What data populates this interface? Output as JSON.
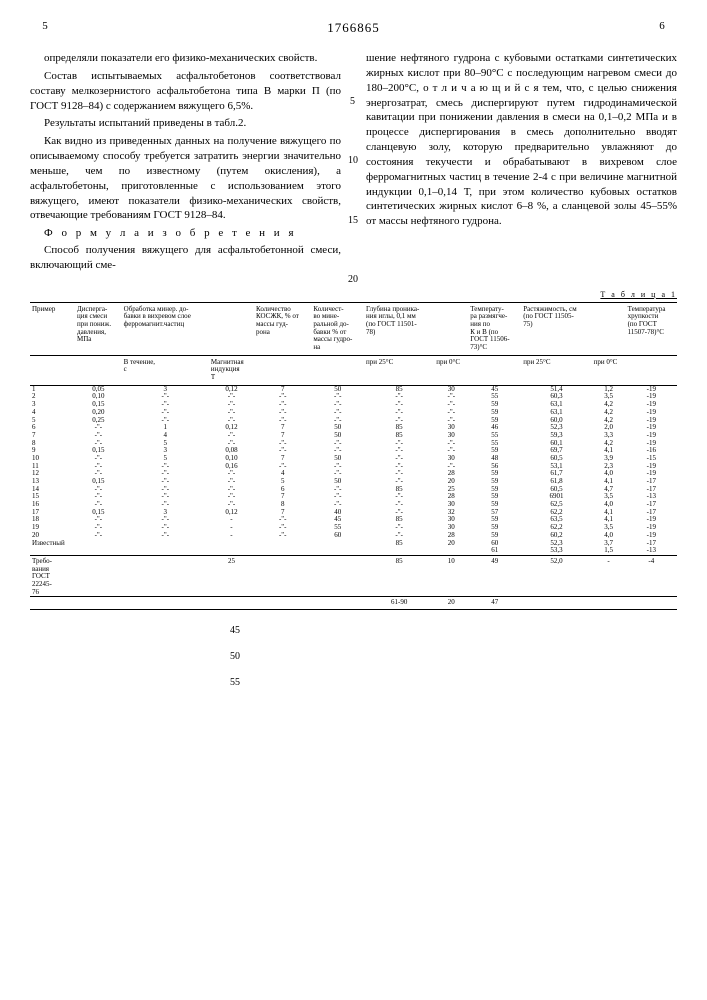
{
  "header": {
    "page_left": "5",
    "patent_number": "1766865",
    "page_right": "6"
  },
  "left_col": {
    "p1": "определяли показатели его физико-механических свойств.",
    "p2": "Состав испытываемых асфальтобетонов соответствовал составу мелкозернистого асфальтобетона типа В марки П (по ГОСТ 9128–84) с содержанием вяжущего 6,5%.",
    "p3": "Результаты испытаний приведены в табл.2.",
    "p4": "Как видно из приведенных данных на получение вяжущего по описываемому способу требуется затратить энергии значительно меньше, чем по известному (путем окисления), а асфальтобетоны, приготовленные с использованием этого вяжущего, имеют показатели физико-механических свойств, отвечающие требованиям ГОСТ 9128–84.",
    "formula_label": "Ф о р м у л а  и з о б р е т е н и я",
    "p5": "Способ получения вяжущего для асфальтобетонной смеси, включающий сме-",
    "ln5": "5",
    "ln10": "10",
    "ln15": "15",
    "ln20": "20"
  },
  "right_col": {
    "p1": "шение нефтяного гудрона с кубовыми остатками синтетических жирных кислот при 80–90°С с последующим нагревом смеси до 180–200°С, о т л и ч а ю щ и й с я  тем, что, с целью снижения энергозатрат, смесь диспергируют путем гидродинамической кавитации при понижении давления в смеси на 0,1–0,2 МПа и в процессе диспергирования в смесь дополнительно вводят сланцевую золу, которую предварительно увлажняют до состояния текучести и обрабатывают в вихревом слое ферромагнитных частиц в течение 2-4 с при величине магнитной индукции 0,1–0,14 Т, при этом количество кубовых остатков синтетических жирных кислот 6–8 %, а сланцевой золы 45–55% от массы нефтяного гудрона."
  },
  "table": {
    "caption": "Т а б л и ц а 1",
    "headers": [
      "Пример",
      "Дисперга-\nция смеси\nпри пониж.\nдавления,\nМПа",
      "Обработка минер. до-\nбавки в вихревом слое\nферромагнит.частиц",
      "",
      "Количество\nКОСЖК, % от\nмассы гуд-\nрона",
      "Количест-\nво мине-\nральной до-\nбавки % от\nмассы гудро-\nна",
      "Глубина проника-\nния иглы, 0,1 мм\n(по ГОСТ 11501-\n78)",
      "",
      "Температу-\nра размягче-\nния по\nК и В (по\nГОСТ 11506-\n73)°С",
      "Растяжимость, см\n(по ГОСТ 11505-\n75)",
      "",
      "Температура\nхрупкости\n(по ГОСТ\n11507-78)°С"
    ],
    "subheaders": [
      "",
      "",
      "В течение,\nс",
      "Магнитная\nиндукция\nТ",
      "",
      "",
      "при 25°С",
      "при 0°С",
      "",
      "при 25°С",
      "при 0°С",
      ""
    ],
    "rows": [
      [
        "1",
        "0,05",
        "3",
        "0,12",
        "7",
        "50",
        "85",
        "30",
        "45",
        "51,4",
        "1,2",
        "-19"
      ],
      [
        "2",
        "0,10",
        "-\"-",
        "-\"-",
        "-\"-",
        "-\"-",
        "-\"-",
        "-\"-",
        "55",
        "60,3",
        "3,5",
        "-19"
      ],
      [
        "3",
        "0,15",
        "-\"-",
        "-\"-",
        "-\"-",
        "-\"-",
        "-\"-",
        "-\"-",
        "59",
        "63,1",
        "4,2",
        "-19"
      ],
      [
        "4",
        "0,20",
        "-\"-",
        "-\"-",
        "-\"-",
        "-\"-",
        "-\"-",
        "-\"-",
        "59",
        "63,1",
        "4,2",
        "-19"
      ],
      [
        "5",
        "0,25",
        "-\"-",
        "-\"-",
        "-\"-",
        "-\"-",
        "-\"-",
        "-\"-",
        "59",
        "60,0",
        "4,2",
        "-19"
      ],
      [
        "6",
        "-\"-",
        "1",
        "0,12",
        "7",
        "50",
        "85",
        "30",
        "46",
        "52,3",
        "2,0",
        "-19"
      ],
      [
        "7",
        "-\"-",
        "4",
        "-\"-",
        "7",
        "50",
        "85",
        "30",
        "55",
        "59,3",
        "3,3",
        "-19"
      ],
      [
        "8",
        "-\"-",
        "5",
        "-\"-",
        "-\"-",
        "-\"-",
        "-\"-",
        "-\"-",
        "55",
        "60,1",
        "4,2",
        "-19"
      ],
      [
        "9",
        "0,15",
        "3",
        "0,08",
        "-\"-",
        "-\"-",
        "-\"-",
        "-\"-",
        "59",
        "69,7",
        "4,1",
        "-16"
      ],
      [
        "10",
        "-\"-",
        "5",
        "0,10",
        "7",
        "50",
        "-\"-",
        "30",
        "48",
        "60,5",
        "3,9",
        "-15"
      ],
      [
        "11",
        "-\"-",
        "-\"-",
        "0,16",
        "-\"-",
        "-\"-",
        "-\"-",
        "-\"-",
        "56",
        "53,1",
        "2,3",
        "-19"
      ],
      [
        "12",
        "-\"-",
        "-\"-",
        "-\"-",
        "4",
        "-\"-",
        "-\"-",
        "28",
        "59",
        "61,7",
        "4,0",
        "-19"
      ],
      [
        "13",
        "0,15",
        "-\"-",
        "-\"-",
        "5",
        "50",
        "-\"-",
        "20",
        "59",
        "61,8",
        "4,1",
        "-17"
      ],
      [
        "14",
        "-\"-",
        "-\"-",
        "-\"-",
        "6",
        "-\"-",
        "85",
        "25",
        "59",
        "60,5",
        "4,7",
        "-17"
      ],
      [
        "15",
        "-\"-",
        "-\"-",
        "-\"-",
        "7",
        "-\"-",
        "-\"-",
        "28",
        "59",
        "6901",
        "3,5",
        "-13"
      ],
      [
        "16",
        "-\"-",
        "-\"-",
        "-\"-",
        "8",
        "-\"-",
        "-\"-",
        "30",
        "59",
        "62,5",
        "4,0",
        "-17"
      ],
      [
        "17",
        "0,15",
        "3",
        "0,12",
        "7",
        "40",
        "-\"-",
        "32",
        "57",
        "62,2",
        "4,1",
        "-17"
      ],
      [
        "18",
        "-\"-",
        "-\"-",
        "-",
        "-\"-",
        "45",
        "85",
        "30",
        "59",
        "63,5",
        "4,1",
        "-19"
      ],
      [
        "19",
        "-\"-",
        "-\"-",
        "-",
        "-\"-",
        "55",
        "-\"-",
        "30",
        "59",
        "62,2",
        "3,5",
        "-19"
      ],
      [
        "20",
        "-\"-",
        "-\"-",
        "-",
        "-\"-",
        "60",
        "-\"-",
        "28",
        "59",
        "60,2",
        "4,0",
        "-19"
      ],
      [
        "Известный",
        "",
        "",
        "",
        "",
        "",
        "85",
        "20",
        "60",
        "52,3",
        "3,7",
        "-17"
      ],
      [
        "",
        "",
        "",
        "",
        "",
        "",
        "",
        "",
        "61",
        "53,3",
        "1,5",
        "-13"
      ]
    ],
    "req_label": "Требо-\nвания\nГОСТ\n22245-\n76",
    "req_row": [
      "",
      "",
      "",
      "25",
      "",
      "",
      "85",
      "10",
      "49",
      "52,0",
      "-",
      "-4"
    ],
    "bottom_row": [
      "",
      "",
      "",
      "",
      "",
      "",
      "61-90",
      "20",
      "47",
      "",
      "",
      ""
    ]
  },
  "loose": {
    "n45": "45",
    "n50": "50",
    "n55": "55"
  }
}
